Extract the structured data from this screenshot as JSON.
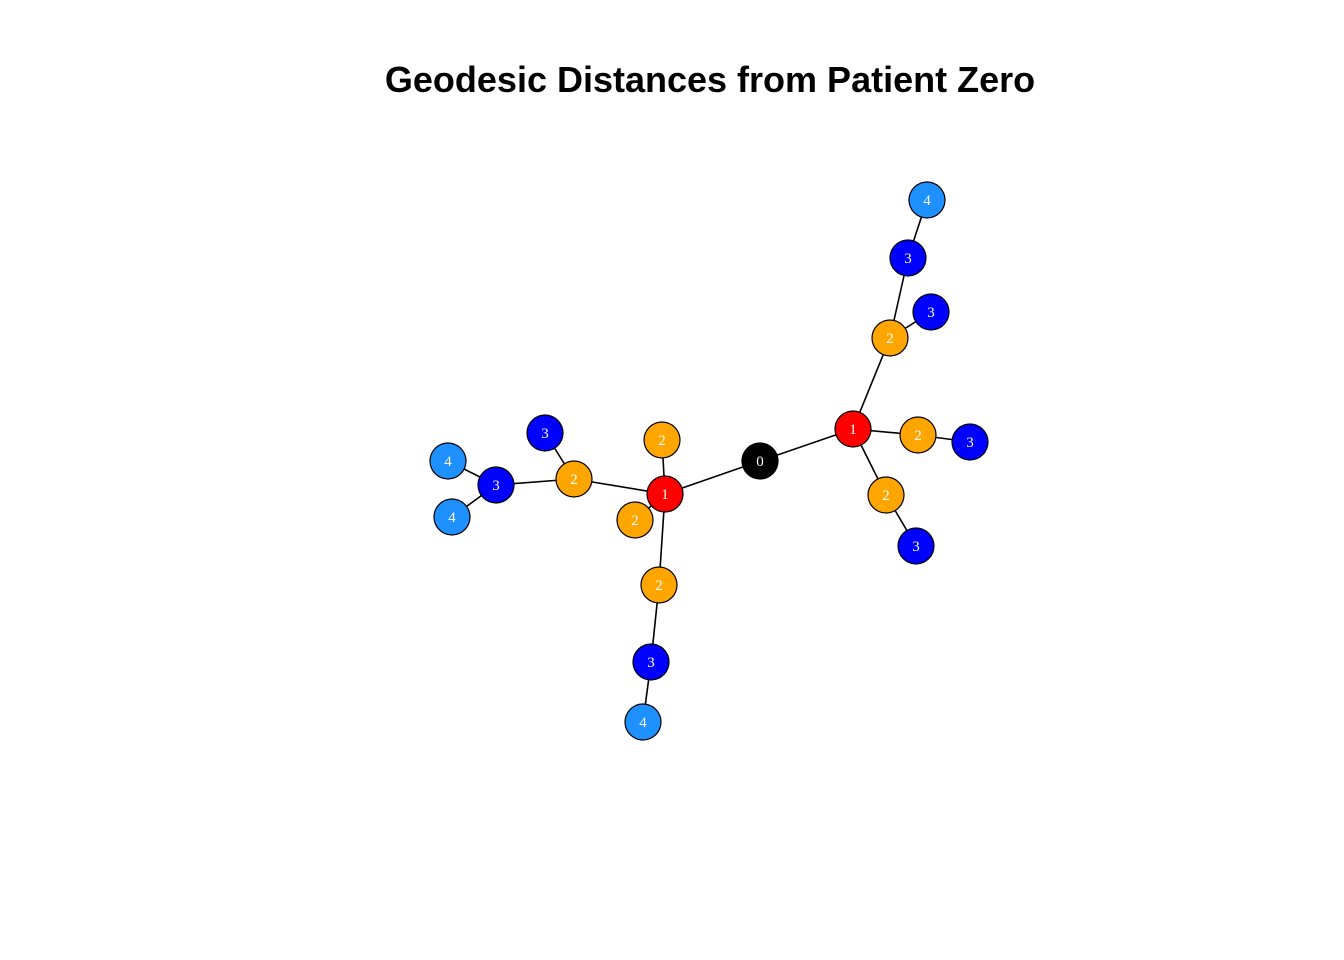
{
  "title": "Geodesic Distances from Patient Zero",
  "colors": {
    "0": "#000000",
    "1": "#ff0000",
    "2": "#ffa500",
    "3": "#0000ff",
    "4": "#1e90ff"
  },
  "nodes": [
    {
      "id": "n0",
      "label": "0",
      "distance": 0
    },
    {
      "id": "n1",
      "label": "1",
      "distance": 1
    },
    {
      "id": "n2",
      "label": "1",
      "distance": 1
    },
    {
      "id": "n3",
      "label": "2",
      "distance": 2
    },
    {
      "id": "n4",
      "label": "2",
      "distance": 2
    },
    {
      "id": "n5",
      "label": "2",
      "distance": 2
    },
    {
      "id": "n6",
      "label": "3",
      "distance": 3
    },
    {
      "id": "n7",
      "label": "3",
      "distance": 3
    },
    {
      "id": "n8",
      "label": "4",
      "distance": 4
    },
    {
      "id": "n9",
      "label": "3",
      "distance": 3
    },
    {
      "id": "n10",
      "label": "3",
      "distance": 3
    },
    {
      "id": "n11",
      "label": "2",
      "distance": 2
    },
    {
      "id": "n12",
      "label": "2",
      "distance": 2
    },
    {
      "id": "n13",
      "label": "2",
      "distance": 2
    },
    {
      "id": "n14",
      "label": "2",
      "distance": 2
    },
    {
      "id": "n15",
      "label": "3",
      "distance": 3
    },
    {
      "id": "n16",
      "label": "3",
      "distance": 3
    },
    {
      "id": "n17",
      "label": "4",
      "distance": 4
    },
    {
      "id": "n18",
      "label": "4",
      "distance": 4
    },
    {
      "id": "n19",
      "label": "3",
      "distance": 3
    },
    {
      "id": "n20",
      "label": "4",
      "distance": 4
    }
  ],
  "edges": [
    [
      "n0",
      "n1"
    ],
    [
      "n0",
      "n2"
    ],
    [
      "n1",
      "n3"
    ],
    [
      "n1",
      "n4"
    ],
    [
      "n1",
      "n5"
    ],
    [
      "n3",
      "n7"
    ],
    [
      "n3",
      "n6"
    ],
    [
      "n7",
      "n8"
    ],
    [
      "n4",
      "n9"
    ],
    [
      "n5",
      "n10"
    ],
    [
      "n2",
      "n11"
    ],
    [
      "n2",
      "n12"
    ],
    [
      "n2",
      "n13"
    ],
    [
      "n2",
      "n14"
    ],
    [
      "n12",
      "n15"
    ],
    [
      "n12",
      "n16"
    ],
    [
      "n16",
      "n17"
    ],
    [
      "n16",
      "n18"
    ],
    [
      "n14",
      "n19"
    ],
    [
      "n19",
      "n20"
    ]
  ]
}
